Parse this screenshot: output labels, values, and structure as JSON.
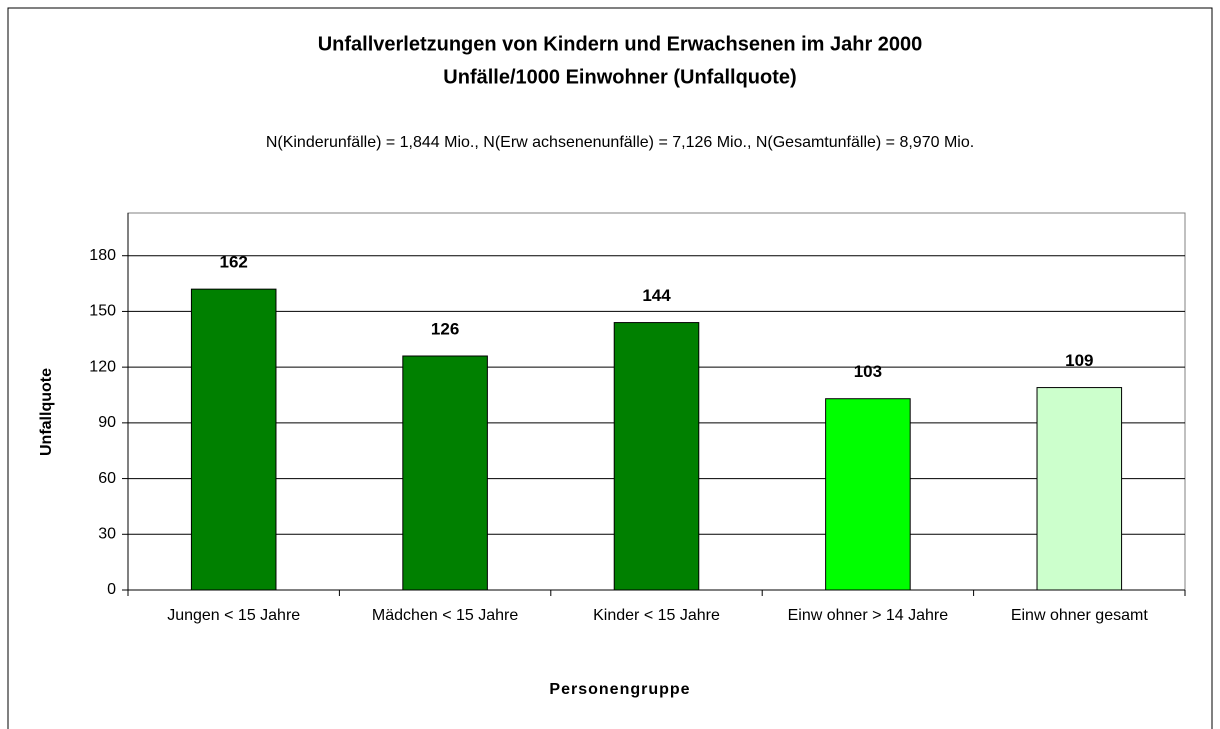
{
  "chart_data": {
    "type": "bar",
    "title": "Unfallverletzungen von Kindern und Erwachsenen im Jahr 2000",
    "subtitle": "Unfälle/1000 Einwohner (Unfallquote)",
    "annotation": "N(Kinderunfälle) = 1,844 Mio., N(Erw achsenenunfälle) = 7,126 Mio., N(Gesamtunfälle) = 8,970 Mio.",
    "x_label": "Personengruppe",
    "y_label": "Unfallquote",
    "categories": [
      "Jungen < 15 Jahre",
      "Mädchen < 15 Jahre",
      "Kinder < 15 Jahre",
      "Einw ohner > 14 Jahre",
      "Einw ohner gesamt"
    ],
    "values": [
      162,
      126,
      144,
      103,
      109
    ],
    "colors": [
      "#008000",
      "#008000",
      "#008000",
      "#00ff00",
      "#ccffcc"
    ],
    "ylim": [
      0,
      203
    ],
    "yticks": [
      0,
      30,
      60,
      90,
      120,
      150,
      180
    ],
    "grid": true
  }
}
